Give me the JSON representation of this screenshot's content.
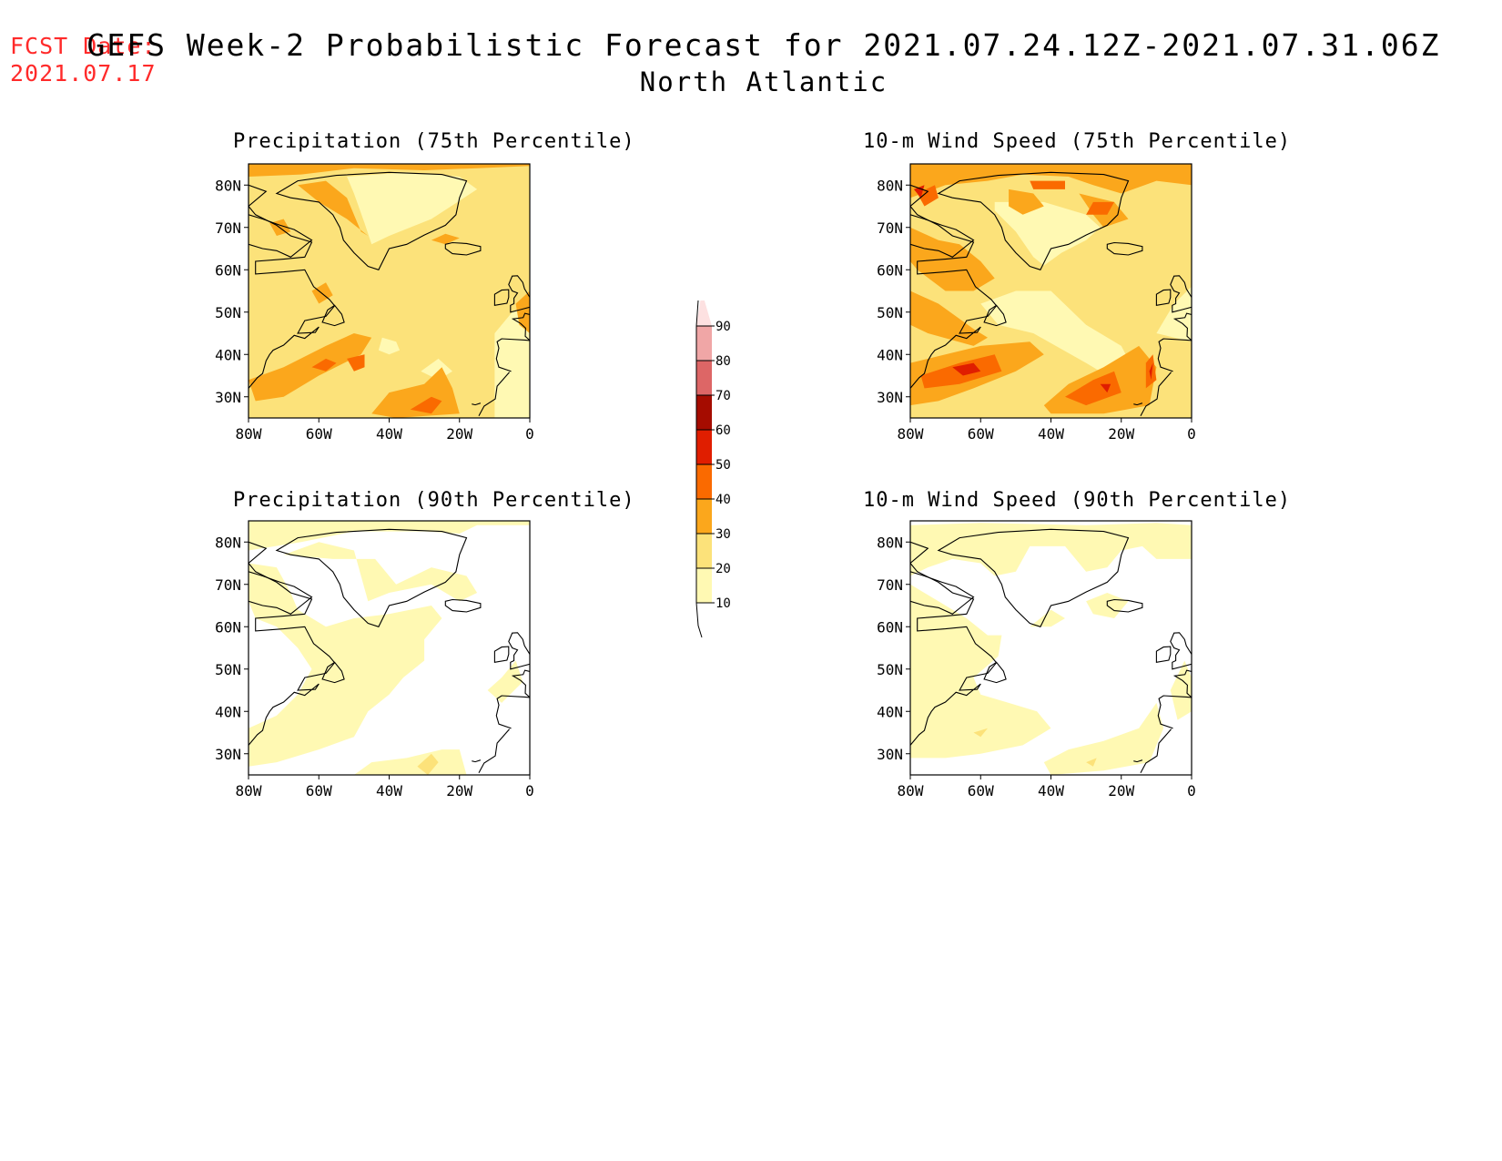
{
  "header": {
    "fcst_label": "FCST Date:",
    "fcst_date": "2021.07.17",
    "title": "GEFS Week-2 Probabilistic Forecast for 2021.07.24.12Z-2021.07.31.06Z",
    "subtitle": "North Atlantic"
  },
  "panels": [
    {
      "title": "Precipitation (75th Percentile)"
    },
    {
      "title": "10-m Wind Speed (75th Percentile)"
    },
    {
      "title": "Precipitation (90th Percentile)"
    },
    {
      "title": "10-m Wind Speed (90th Percentile)"
    }
  ],
  "axes": {
    "lat_labels": [
      "80N",
      "70N",
      "60N",
      "50N",
      "40N",
      "30N"
    ],
    "lon_labels": [
      "80W",
      "60W",
      "40W",
      "20W",
      "0"
    ],
    "lat_range": [
      25,
      85
    ],
    "lon_range": [
      -80,
      0
    ]
  },
  "colorbar": {
    "levels": [
      "10",
      "20",
      "30",
      "40",
      "50",
      "60",
      "70",
      "80",
      "90"
    ],
    "colors": [
      "#fff9b3",
      "#fce27a",
      "#fba71c",
      "#fa6a00",
      "#e01e00",
      "#a50c00",
      "#dd6666",
      "#f0a6a6",
      "#fde1e1"
    ]
  }
}
